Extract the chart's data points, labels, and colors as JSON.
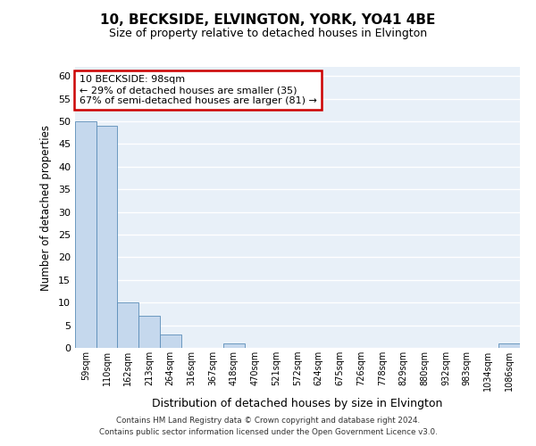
{
  "title": "10, BECKSIDE, ELVINGTON, YORK, YO41 4BE",
  "subtitle": "Size of property relative to detached houses in Elvington",
  "xlabel": "Distribution of detached houses by size in Elvington",
  "ylabel": "Number of detached properties",
  "bar_color": "#c5d8ed",
  "bar_edge_color": "#5b8db8",
  "background_color": "#e8f0f8",
  "grid_color": "#ffffff",
  "categories": [
    "59sqm",
    "110sqm",
    "162sqm",
    "213sqm",
    "264sqm",
    "316sqm",
    "367sqm",
    "418sqm",
    "470sqm",
    "521sqm",
    "572sqm",
    "624sqm",
    "675sqm",
    "726sqm",
    "778sqm",
    "829sqm",
    "880sqm",
    "932sqm",
    "983sqm",
    "1034sqm",
    "1086sqm"
  ],
  "values": [
    50,
    49,
    10,
    7,
    3,
    0,
    0,
    1,
    0,
    0,
    0,
    0,
    0,
    0,
    0,
    0,
    0,
    0,
    0,
    0,
    1
  ],
  "ylim": [
    0,
    62
  ],
  "yticks": [
    0,
    5,
    10,
    15,
    20,
    25,
    30,
    35,
    40,
    45,
    50,
    55,
    60
  ],
  "annotation_text": "10 BECKSIDE: 98sqm\n← 29% of detached houses are smaller (35)\n67% of semi-detached houses are larger (81) →",
  "annotation_box_color": "#ffffff",
  "annotation_box_edge": "#cc0000",
  "footer_line1": "Contains HM Land Registry data © Crown copyright and database right 2024.",
  "footer_line2": "Contains public sector information licensed under the Open Government Licence v3.0."
}
